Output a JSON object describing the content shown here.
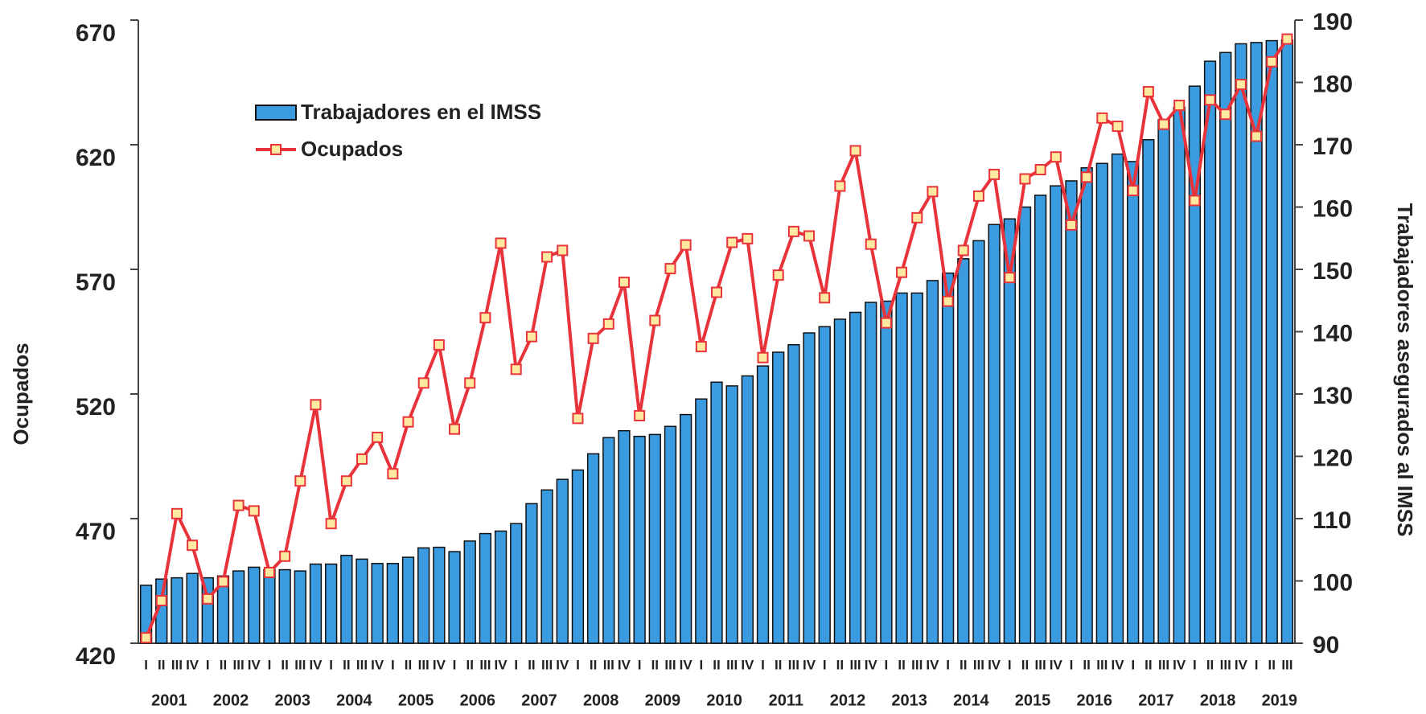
{
  "chart_data": {
    "type": "bar-line",
    "years": [
      "2001",
      "2002",
      "2003",
      "2004",
      "2005",
      "2006",
      "2007",
      "2008",
      "2009",
      "2010",
      "2011",
      "2012",
      "2013",
      "2014",
      "2015",
      "2016",
      "2017",
      "2018",
      "2019"
    ],
    "categories": [
      "I",
      "II",
      "III",
      "IV",
      "I",
      "II",
      "III",
      "IV",
      "I",
      "II",
      "III",
      "IV",
      "I",
      "II",
      "III",
      "IV",
      "I",
      "II",
      "III",
      "IV",
      "I",
      "II",
      "III",
      "IV",
      "I",
      "II",
      "III",
      "IV",
      "I",
      "II",
      "III",
      "IV",
      "I",
      "II",
      "III",
      "IV",
      "I",
      "II",
      "III",
      "IV",
      "I",
      "II",
      "III",
      "IV",
      "I",
      "II",
      "III",
      "IV",
      "I",
      "II",
      "III",
      "IV",
      "I",
      "II",
      "III",
      "IV",
      "I",
      "II",
      "III",
      "IV",
      "I",
      "II",
      "III",
      "IV",
      "I",
      "II",
      "III",
      "IV",
      "I",
      "II",
      "III",
      "IV",
      "I",
      "II",
      "III"
    ],
    "series": [
      {
        "name": "Trabajadores en el IMSS",
        "kind": "bar",
        "axis": "y2",
        "color": "#3a9be0",
        "values": [
          99.3,
          100.3,
          100.5,
          101.2,
          100.5,
          100.8,
          101.6,
          102.2,
          101.8,
          101.8,
          101.6,
          102.7,
          102.7,
          104.1,
          103.5,
          102.8,
          102.8,
          103.8,
          105.3,
          105.4,
          104.7,
          106.4,
          107.6,
          108.0,
          109.2,
          112.4,
          114.6,
          116.3,
          117.8,
          120.4,
          123.0,
          124.1,
          123.2,
          123.5,
          124.8,
          126.7,
          129.2,
          131.9,
          131.3,
          132.9,
          134.5,
          136.7,
          137.9,
          139.8,
          140.8,
          142.0,
          143.1,
          144.7,
          144.9,
          146.2,
          146.2,
          148.2,
          149.4,
          151.7,
          154.6,
          157.2,
          158.1,
          160.0,
          161.9,
          163.4,
          164.2,
          166.3,
          167.0,
          168.5,
          167.3,
          170.8,
          174.0,
          176.0,
          179.4,
          183.4,
          184.8,
          186.2,
          186.4,
          186.7,
          186.8
        ]
      },
      {
        "name": "Ocupados",
        "kind": "line",
        "axis": "y",
        "color": "#e8333a",
        "values": [
          422.2,
          437.1,
          472.0,
          459.3,
          437.8,
          444.7,
          475.3,
          473.1,
          448.4,
          454.9,
          485.1,
          515.7,
          468.0,
          485.1,
          493.9,
          502.6,
          488.0,
          508.8,
          524.4,
          539.7,
          505.9,
          524.4,
          550.6,
          580.5,
          529.9,
          543.0,
          575.0,
          577.6,
          510.2,
          542.3,
          548.1,
          564.8,
          511.3,
          549.5,
          570.3,
          579.8,
          539.0,
          560.8,
          580.8,
          582.3,
          534.6,
          567.7,
          585.2,
          583.4,
          558.6,
          603.4,
          617.6,
          580.1,
          548.5,
          568.8,
          590.7,
          601.2,
          557.2,
          577.6,
          599.4,
          608.1,
          566.7,
          606.3,
          610.0,
          615.1,
          587.8,
          607.0,
          630.7,
          627.4,
          601.6,
          641.3,
          628.2,
          635.8,
          597.6,
          638.0,
          632.2,
          644.2,
          623.4,
          653.3,
          662.4
        ]
      }
    ],
    "ylabel": "Ocupados",
    "y2label": "Trabajadores asegurados al IMSS",
    "ylim": [
      420,
      670
    ],
    "yticks": [
      420,
      470,
      520,
      570,
      620,
      670
    ],
    "y2lim": [
      90,
      190
    ],
    "y2ticks": [
      90,
      100,
      110,
      120,
      130,
      140,
      150,
      160,
      170,
      180,
      190
    ],
    "legend": "upper left"
  }
}
